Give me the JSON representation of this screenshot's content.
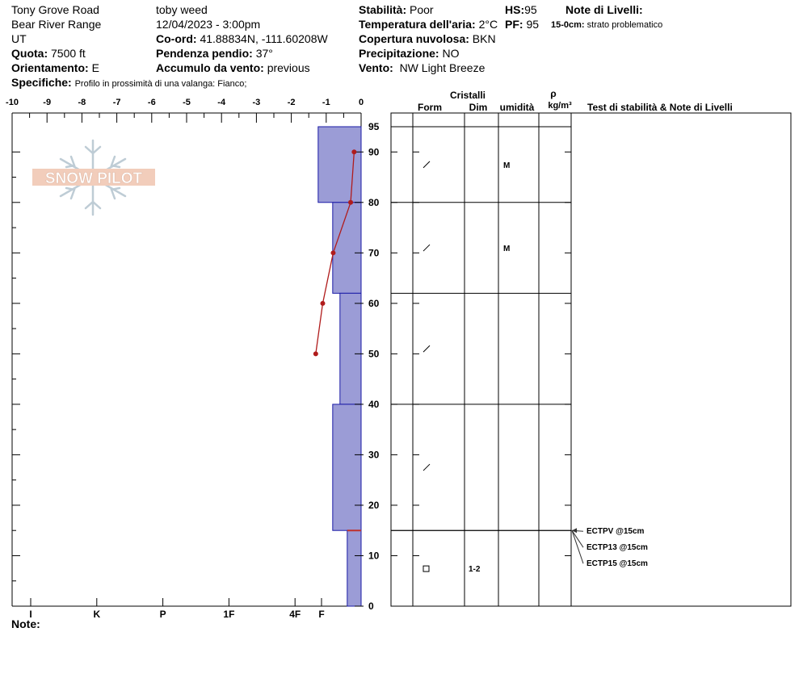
{
  "header": {
    "location": "Tony Grove Road",
    "range": "Bear River Range",
    "state": "UT",
    "observer": "toby weed",
    "datetime": "12/04/2023 - 3:00pm",
    "elevation_label": "Quota:",
    "elevation": "7500 ft",
    "aspect_label": "Orientamento:",
    "aspect": "E",
    "coord_label": "Co-ord:",
    "coord": "41.88834N, -111.60208W",
    "slope_label": "Pendenza pendio:",
    "slope": "37°",
    "wind_loading_label": "Accumulo da vento:",
    "wind_loading": "previous",
    "specifics_label": "Specifiche:",
    "specifics": "Profilo in prossimità di una valanga: Fianco;",
    "stability_label": "Stabilità:",
    "stability": "Poor",
    "air_temp_label": "Temperatura dell'aria:",
    "air_temp": "2°C",
    "sky_label": "Copertura nuvolosa:",
    "sky": "BKN",
    "precip_label": "Precipitazione:",
    "precip": "NO",
    "wind_label": "Vento:",
    "wind": "NW Light Breeze",
    "hs_label": "HS:",
    "hs": "95",
    "pf_label": "PF:",
    "pf": "95",
    "layer_notes_label": "Note di Livelli:",
    "layer_note_depth": "15-0cm:",
    "layer_note_text": "strato problematico"
  },
  "logo": {
    "text": "SNOW PILOT"
  },
  "footer": {
    "notes_label": "Note:"
  },
  "colors": {
    "hardness_fill": "#9b9cd6",
    "hardness_edge": "#1a1aa6",
    "temp_line": "#b01c1c",
    "weak_layer": "#c0302b"
  },
  "columns": {
    "crystals": "Cristalli",
    "form": "Form",
    "size": "Dim",
    "moisture": "umidità",
    "rho": "ρ",
    "density_unit": "kg/m³",
    "tests": "Test di stabilità & Note di Livelli"
  },
  "chart_data": {
    "type": "snow_profile",
    "temperature_axis": {
      "ticks": [
        "-10",
        "-9",
        "-8",
        "-7",
        "-6",
        "-5",
        "-4",
        "-3",
        "-2",
        "-1",
        "0"
      ],
      "range": [
        -10,
        0
      ]
    },
    "height_axis": {
      "ticks": [
        "0",
        "10",
        "20",
        "30",
        "40",
        "50",
        "60",
        "70",
        "80",
        "90",
        "95"
      ],
      "range": [
        0,
        95
      ]
    },
    "hardness_axis": {
      "ticks": [
        "I",
        "K",
        "P",
        "1F",
        "4F",
        "F"
      ],
      "values": [
        5,
        4,
        3,
        2,
        1,
        0
      ]
    },
    "layers": [
      {
        "top": 95,
        "bottom": 80,
        "hardness": 0.65,
        "form_icon": "faceted-rounded",
        "size": "",
        "moisture": "M"
      },
      {
        "top": 80,
        "bottom": 62,
        "hardness": 0.43,
        "form_icon": "faceted-rounded",
        "size": "",
        "moisture": "M"
      },
      {
        "top": 62,
        "bottom": 40,
        "hardness": 0.32,
        "form_icon": "faceted-rounded",
        "size": "",
        "moisture": ""
      },
      {
        "top": 40,
        "bottom": 15,
        "hardness": 0.43,
        "form_icon": "faceted-rounded",
        "size": "",
        "moisture": ""
      },
      {
        "top": 15,
        "bottom": 0,
        "hardness": 0.21,
        "form_icon": "faceted-square",
        "size": "1-2",
        "moisture": ""
      }
    ],
    "temperature_profile": [
      {
        "height": 90,
        "temp": -0.2
      },
      {
        "height": 80,
        "temp": -0.3
      },
      {
        "height": 70,
        "temp": -0.8
      },
      {
        "height": 60,
        "temp": -1.1
      },
      {
        "height": 50,
        "temp": -1.3
      }
    ],
    "weak_layer_height": 15,
    "tests": [
      {
        "label": "ECTPV @15cm",
        "height": 15
      },
      {
        "label": "ECTP13 @15cm",
        "height": 15
      },
      {
        "label": "ECTP15 @15cm",
        "height": 15
      }
    ]
  }
}
